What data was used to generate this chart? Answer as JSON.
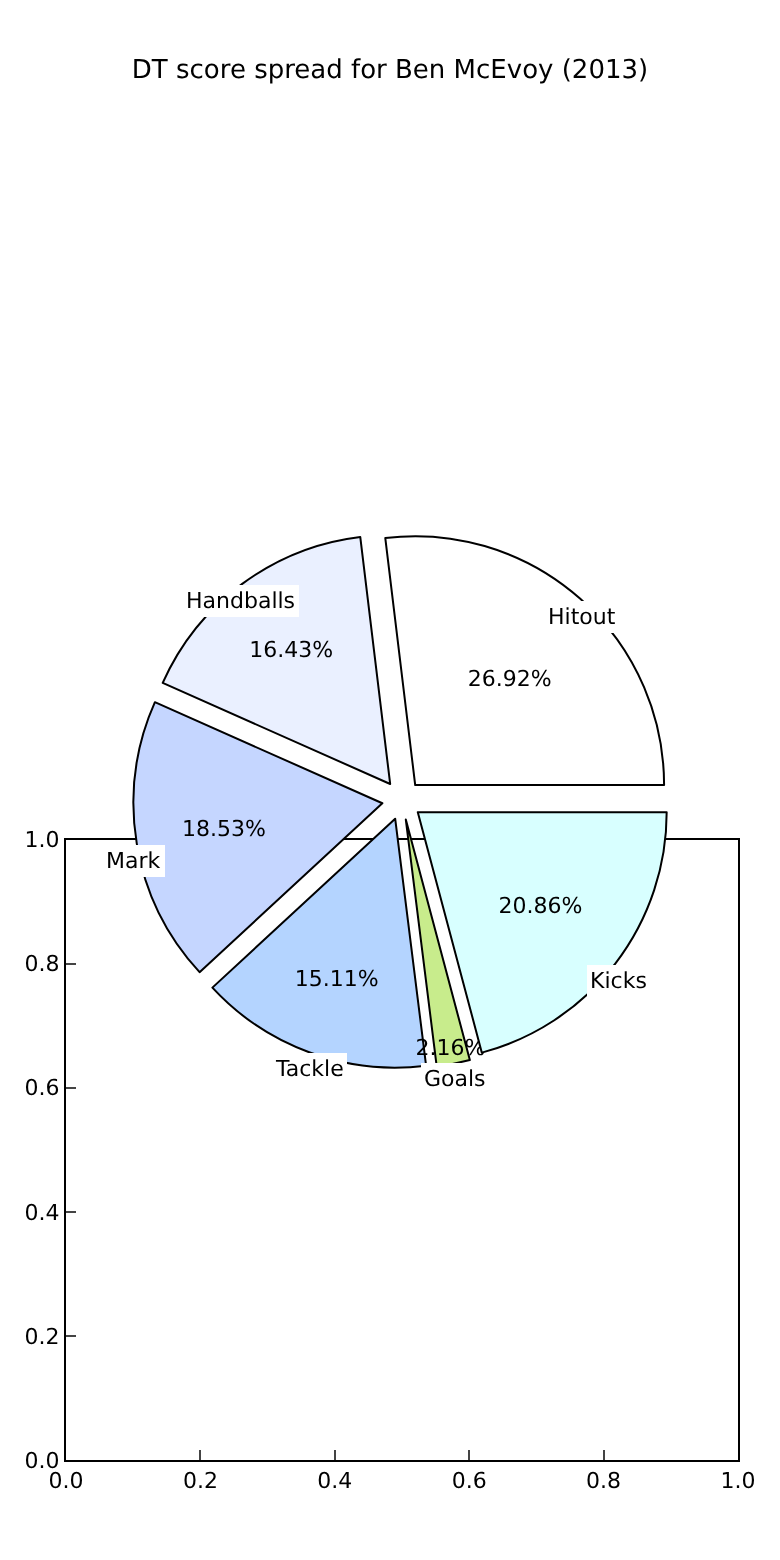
{
  "chart_data": [
    {
      "type": "pie",
      "title": "DT score spread for Ben McEvoy (2013)",
      "categories": [
        "Hitout",
        "Handballs",
        "Mark",
        "Tackle",
        "Goals",
        "Kicks"
      ],
      "values": [
        26.92,
        16.43,
        18.53,
        15.11,
        2.16,
        20.86
      ],
      "value_labels": [
        "26.92%",
        "16.43%",
        "18.53%",
        "15.11%",
        "2.16%",
        "20.86%"
      ],
      "colors": [
        "#ffffff",
        "#eaf0ff",
        "#c5d6ff",
        "#b4d4ff",
        "#c8ec8c",
        "#d8ffff"
      ],
      "legend": false
    },
    {
      "type": "scatter",
      "xlim": [
        0,
        1
      ],
      "ylim": [
        0,
        1
      ],
      "xticks": [
        {
          "value": 0,
          "label": "0.0"
        },
        0.2,
        0.4,
        0.6,
        0.8,
        {
          "value": 1,
          "label": "1.0"
        }
      ],
      "yticks": [
        {
          "value": 0,
          "label": "0.0"
        },
        0.2,
        0.4,
        0.6,
        0.8,
        {
          "value": 1,
          "label": "1.0"
        }
      ]
    }
  ]
}
